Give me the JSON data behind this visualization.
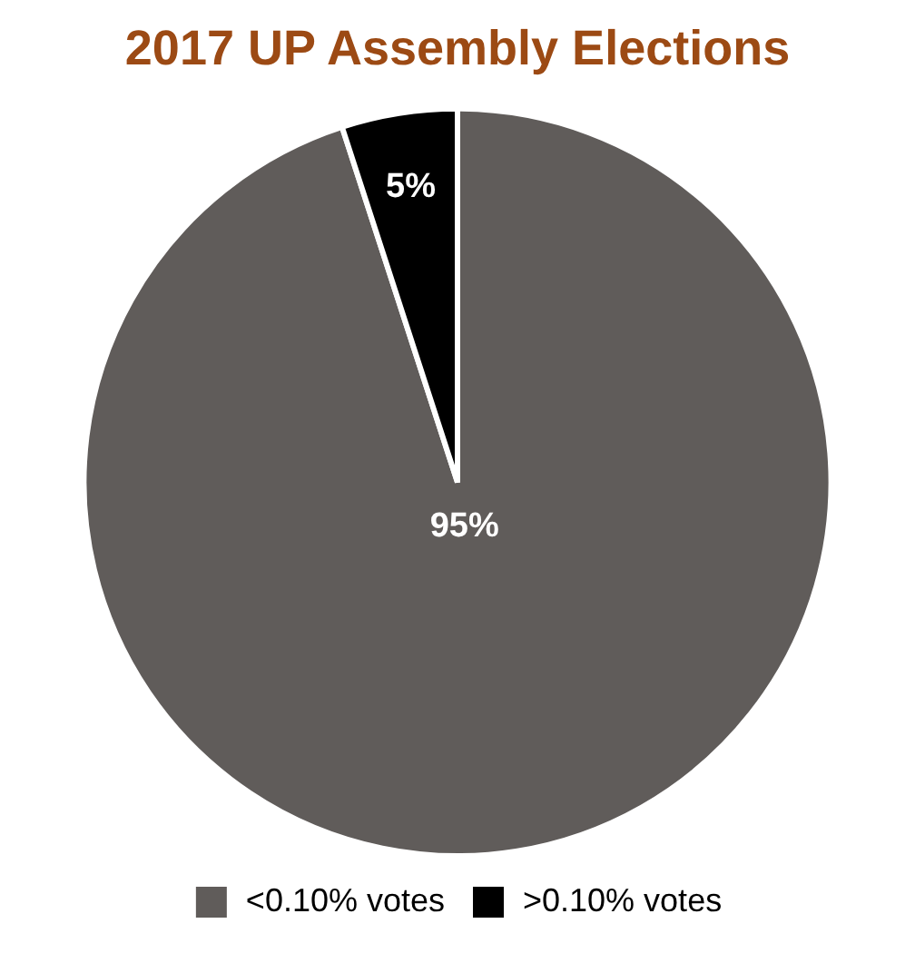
{
  "chart_data": {
    "type": "pie",
    "title": "2017 UP Assembly Elections",
    "categories": [
      "<0.10% votes",
      ">0.10% votes"
    ],
    "values": [
      95,
      5
    ],
    "colors": [
      "#605c5a",
      "#000000"
    ],
    "value_labels": [
      "95%",
      "5%"
    ],
    "legend": "bottom"
  }
}
